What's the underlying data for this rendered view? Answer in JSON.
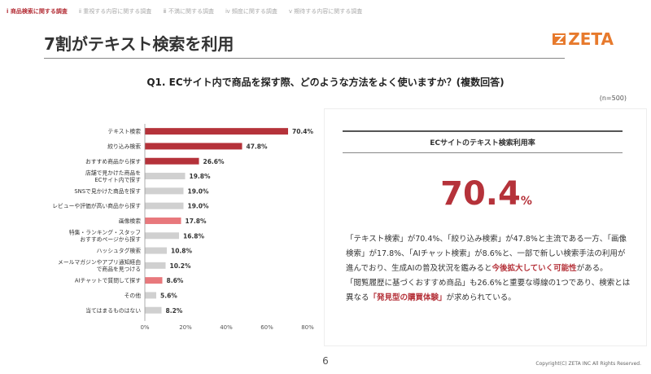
{
  "tabs": [
    {
      "label": "ⅰ 商品検索に関する調査",
      "active": true
    },
    {
      "label": "ⅱ 重視する内容に関する調査",
      "active": false
    },
    {
      "label": "ⅲ 不満に関する調査",
      "active": false
    },
    {
      "label": "ⅳ 頻度に関する調査",
      "active": false
    },
    {
      "label": "ⅴ 期待する内容に関する調査",
      "active": false
    }
  ],
  "title": "7割がテキスト検索を利用",
  "logo_text": "ZETA",
  "question": "Q1. ECサイト内で商品を探す際、どのような方法をよく使いますか？(複数回答)",
  "sample_note": "(n=500)",
  "chart_data": {
    "type": "bar",
    "orientation": "horizontal",
    "categories": [
      [
        "テキスト検索"
      ],
      [
        "絞り込み検索"
      ],
      [
        "おすすめ商品から探す"
      ],
      [
        "店舗で見かけた商品を",
        "ECサイト内で探す"
      ],
      [
        "SNSで見かけた商品を探す"
      ],
      [
        "レビューや評価が高い商品から探す"
      ],
      [
        "画像検索"
      ],
      [
        "特集・ランキング・スタッフ",
        "おすすめページから探す"
      ],
      [
        "ハッシュタグ検索"
      ],
      [
        "メールマガジンやアプリ通知経由",
        "で商品を見つける"
      ],
      [
        "AIチャットで質問して探す"
      ],
      [
        "その他"
      ],
      [
        "当てはまるものはない"
      ]
    ],
    "values": [
      70.4,
      47.8,
      26.6,
      19.8,
      19.0,
      19.0,
      17.8,
      16.8,
      10.8,
      10.2,
      8.6,
      5.6,
      8.2
    ],
    "value_labels": [
      "70.4%",
      "47.8%",
      "26.6%",
      "19.8%",
      "19.0%",
      "19.0%",
      "17.8%",
      "16.8%",
      "10.8%",
      "10.2%",
      "8.6%",
      "5.6%",
      "8.2%"
    ],
    "bar_colors": [
      "#b5323a",
      "#b5323a",
      "#b5323a",
      "#d0d0d0",
      "#d0d0d0",
      "#d0d0d0",
      "#e8787c",
      "#d0d0d0",
      "#d0d0d0",
      "#d0d0d0",
      "#e8787c",
      "#d0d0d0",
      "#d0d0d0"
    ],
    "xlim": [
      0,
      80
    ],
    "xticks": [
      "0%",
      "20%",
      "40%",
      "60%",
      "80%"
    ],
    "grid": false
  },
  "panel": {
    "header": "ECサイトのテキスト検索利用率",
    "big_value": "70.4",
    "big_unit": "%",
    "paragraphs": [
      [
        {
          "t": "「テキスト検索」が70.4%、「絞り込み検索」が47.8%と主流である一方、「画像検索」が17.8%、「AIチャット検索」が8.6%と、一部で新しい検索手法の利用が進んでおり、生成AIの普及状況を鑑みると",
          "hl": false
        },
        {
          "t": "今後拡大していく可能性",
          "hl": true
        },
        {
          "t": "がある。",
          "hl": false
        }
      ],
      [
        {
          "t": "「閲覧履歴に基づくおすすめ商品」も26.6%と重要な導線の1つであり、検索とは異なる",
          "hl": false
        },
        {
          "t": "「発見型の購買体験」",
          "hl": true
        },
        {
          "t": "が求められている。",
          "hl": false
        }
      ]
    ]
  },
  "page_number": "6",
  "copyright": "Copyright(C) ZETA INC All Rights Reserved."
}
